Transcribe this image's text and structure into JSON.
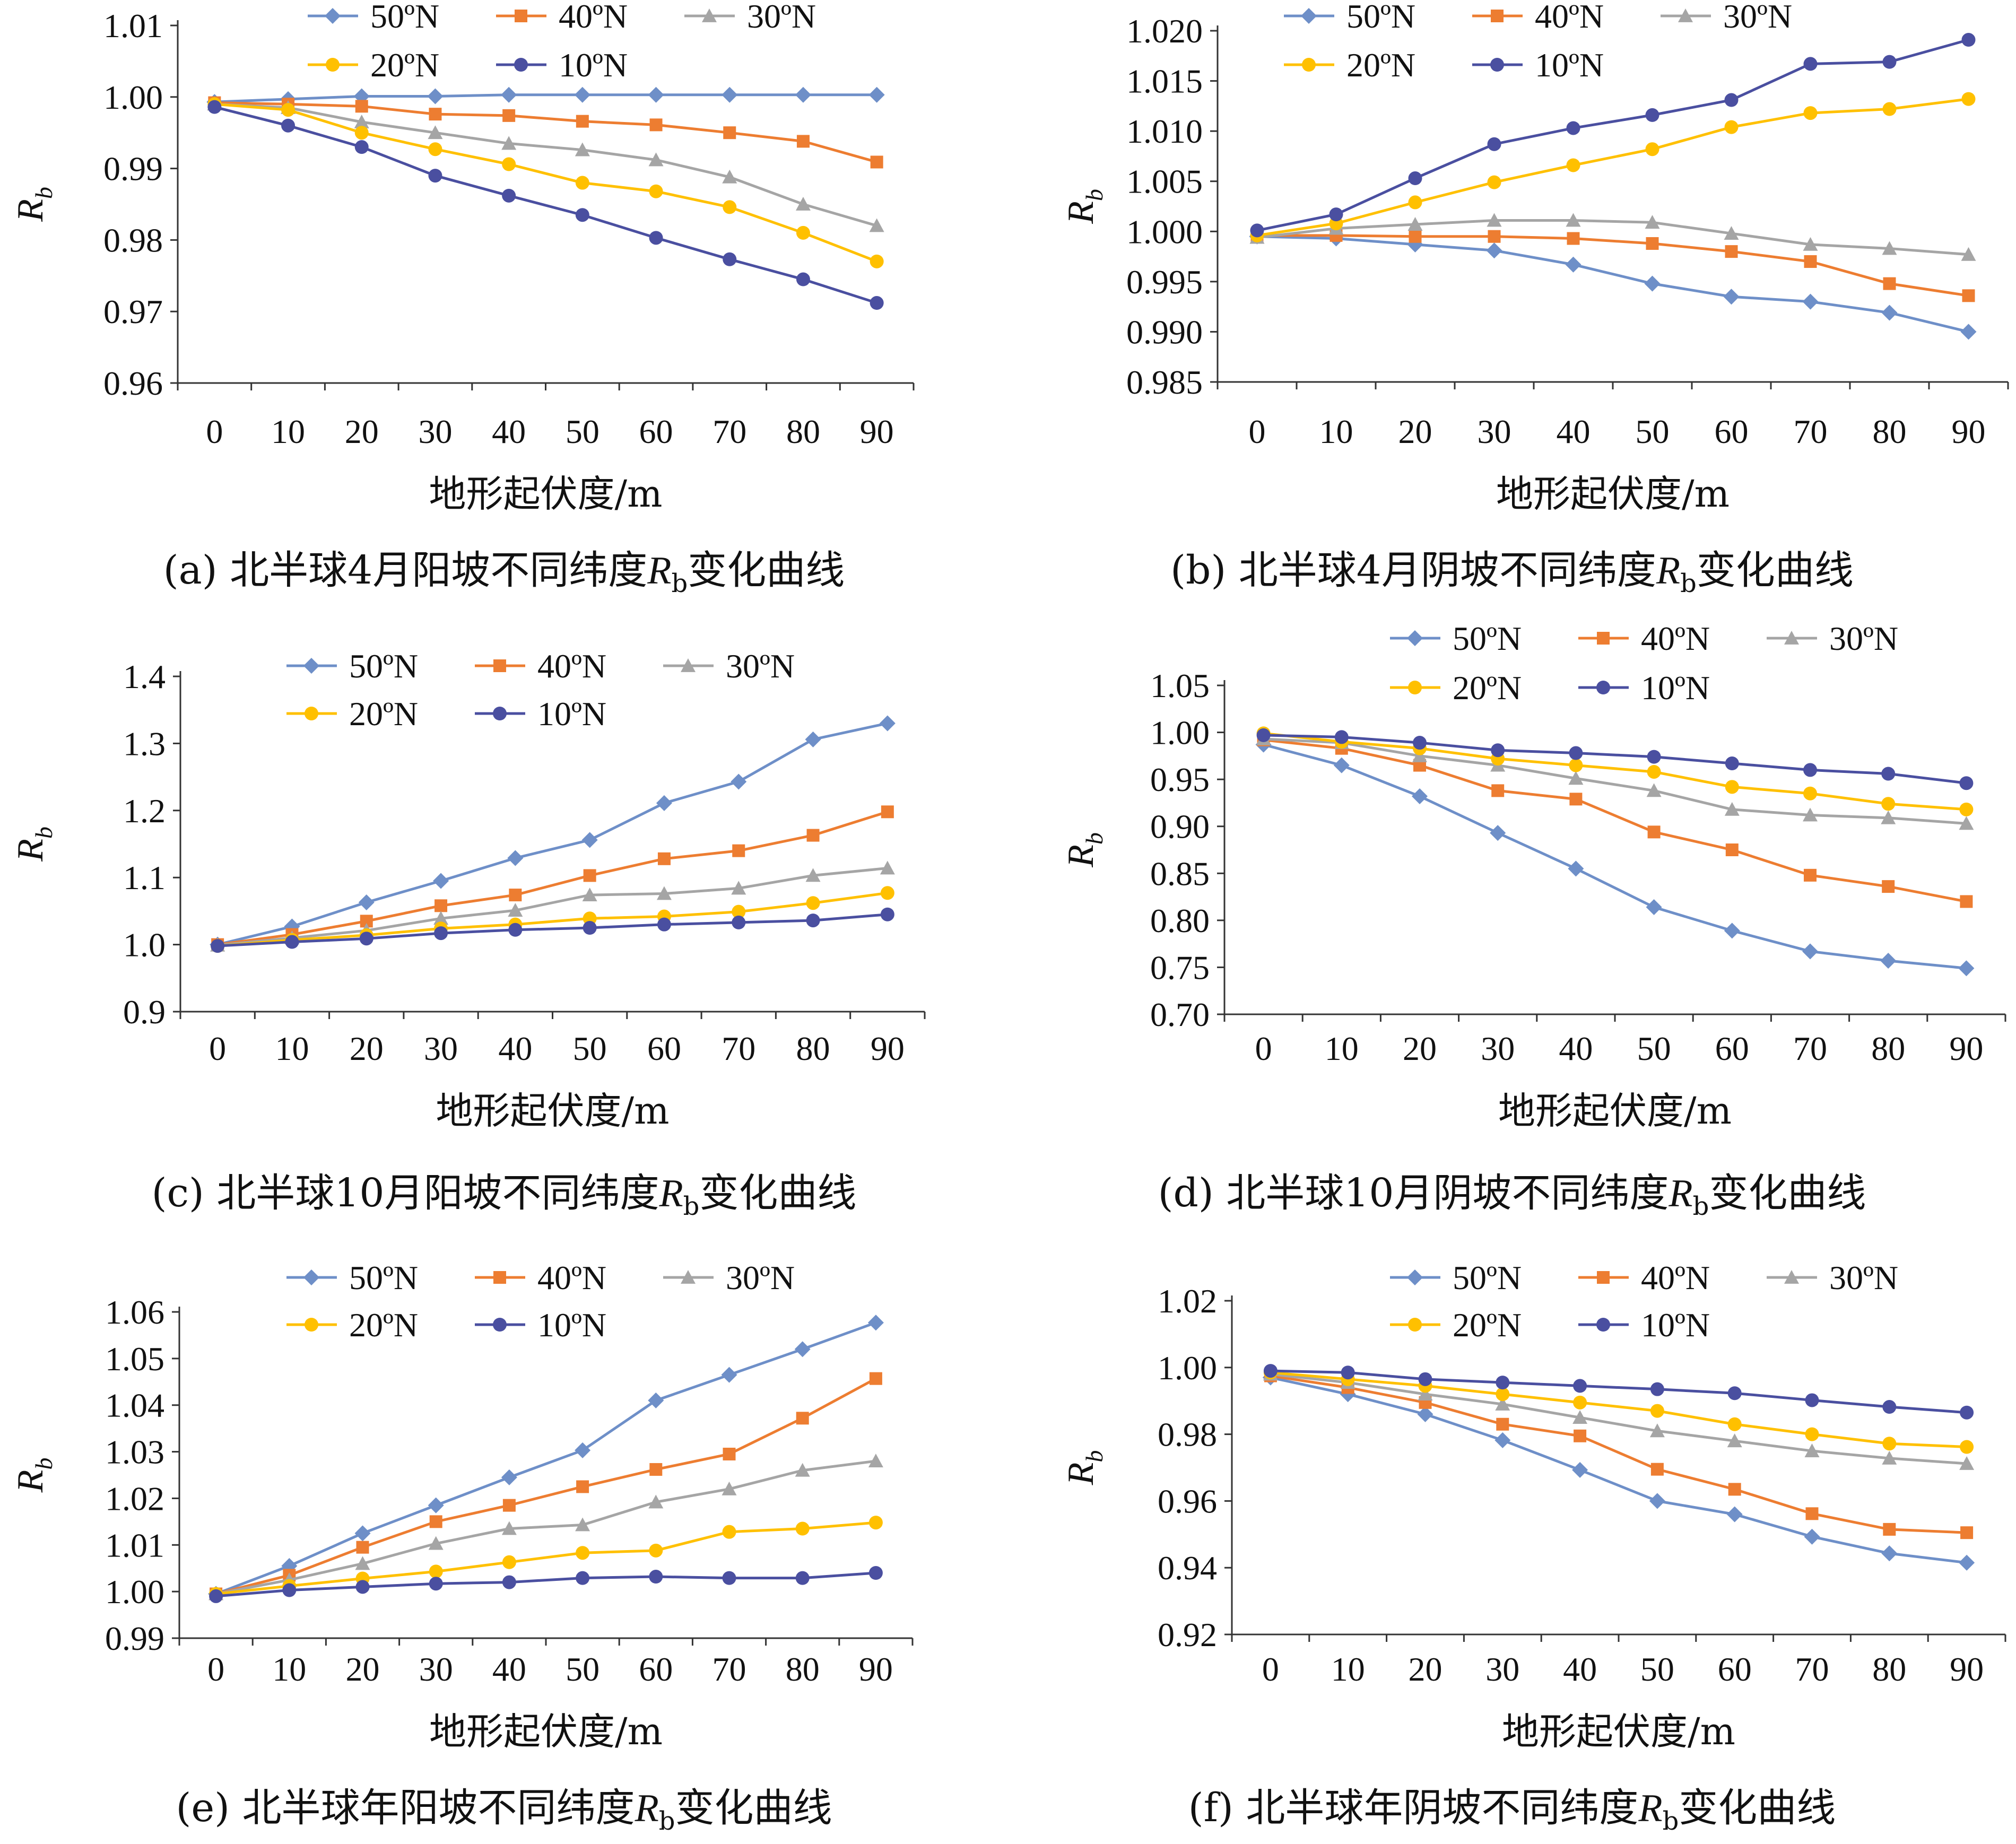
{
  "series_colors": {
    "50ºN": "#6E8FC8",
    "40ºN": "#ED7D31",
    "30ºN": "#A5A5A5",
    "20ºN": "#FFC000",
    "10ºN": "#4A4FA0"
  },
  "chart_data": [
    {
      "type": "line",
      "caption": {
        "prefix": "(a) 北半球4月阳坡不同纬度",
        "var": "R",
        "sub": "b",
        "suffix": "变化曲线"
      },
      "xlabel": "地形起伏度/m",
      "ylabel": "R",
      "ylabel_sub": "b",
      "x": [
        0,
        10,
        20,
        30,
        40,
        50,
        60,
        70,
        80,
        90
      ],
      "ylim": [
        0.96,
        1.01
      ],
      "yticks": [
        "0.96",
        "0.97",
        "0.98",
        "0.99",
        "1.00",
        "1.01"
      ],
      "legend": "top",
      "series": [
        {
          "name": "50ºN",
          "marker": "diamond",
          "values": [
            0.9993,
            0.9997,
            1.0001,
            1.0001,
            1.0003,
            1.0003,
            1.0003,
            1.0003,
            1.0003,
            1.0003
          ]
        },
        {
          "name": "40ºN",
          "marker": "square",
          "values": [
            0.9992,
            0.999,
            0.9987,
            0.9976,
            0.9974,
            0.9966,
            0.9961,
            0.995,
            0.9938,
            0.9909
          ]
        },
        {
          "name": "30ºN",
          "marker": "triangle",
          "values": [
            0.999,
            0.9985,
            0.9965,
            0.995,
            0.9935,
            0.9926,
            0.9912,
            0.9888,
            0.985,
            0.982
          ]
        },
        {
          "name": "20ºN",
          "marker": "circle",
          "values": [
            0.999,
            0.9982,
            0.995,
            0.9927,
            0.9906,
            0.988,
            0.9868,
            0.9846,
            0.981,
            0.977
          ]
        },
        {
          "name": "10ºN",
          "marker": "circle",
          "values": [
            0.9986,
            0.996,
            0.993,
            0.989,
            0.9862,
            0.9835,
            0.9803,
            0.9773,
            0.9745,
            0.9712
          ]
        }
      ]
    },
    {
      "type": "line",
      "caption": {
        "prefix": "(b) 北半球4月阴坡不同纬度",
        "var": "R",
        "sub": "b",
        "suffix": "变化曲线"
      },
      "xlabel": "地形起伏度/m",
      "ylabel": "R",
      "ylabel_sub": "b",
      "x": [
        0,
        10,
        20,
        30,
        40,
        50,
        60,
        70,
        80,
        90
      ],
      "ylim": [
        0.985,
        1.02
      ],
      "yticks": [
        "0.985",
        "0.990",
        "0.995",
        "1.000",
        "1.005",
        "1.010",
        "1.015",
        "1.020"
      ],
      "legend": "top",
      "series": [
        {
          "name": "50ºN",
          "marker": "diamond",
          "values": [
            0.9995,
            0.9993,
            0.9987,
            0.9981,
            0.9967,
            0.9948,
            0.9935,
            0.993,
            0.9919,
            0.99
          ]
        },
        {
          "name": "40ºN",
          "marker": "square",
          "values": [
            0.9996,
            0.9996,
            0.9995,
            0.9995,
            0.9993,
            0.9988,
            0.998,
            0.997,
            0.9948,
            0.9936
          ]
        },
        {
          "name": "30ºN",
          "marker": "triangle",
          "values": [
            0.9994,
            1.0003,
            1.0007,
            1.0011,
            1.0011,
            1.0009,
            0.9998,
            0.9987,
            0.9983,
            0.9977
          ]
        },
        {
          "name": "20ºN",
          "marker": "circle",
          "values": [
            0.9996,
            1.0008,
            1.0029,
            1.0049,
            1.0066,
            1.0082,
            1.0104,
            1.0118,
            1.0122,
            1.0132
          ]
        },
        {
          "name": "10ºN",
          "marker": "circle",
          "values": [
            1.0001,
            1.0017,
            1.0053,
            1.0087,
            1.0103,
            1.0116,
            1.0131,
            1.0167,
            1.0169,
            1.0191
          ]
        }
      ]
    },
    {
      "type": "line",
      "caption": {
        "prefix": "(c) 北半球10月阳坡不同纬度",
        "var": "R",
        "sub": "b",
        "suffix": "变化曲线"
      },
      "xlabel": "地形起伏度/m",
      "ylabel": "R",
      "ylabel_sub": "b",
      "x": [
        0,
        10,
        20,
        30,
        40,
        50,
        60,
        70,
        80,
        90
      ],
      "ylim": [
        0.9,
        1.4
      ],
      "yticks": [
        "0.9",
        "1.0",
        "1.1",
        "1.2",
        "1.3",
        "1.4"
      ],
      "legend": "top",
      "series": [
        {
          "name": "50ºN",
          "marker": "diamond",
          "values": [
            1.0,
            1.027,
            1.063,
            1.095,
            1.129,
            1.156,
            1.211,
            1.243,
            1.306,
            1.33
          ]
        },
        {
          "name": "40ºN",
          "marker": "square",
          "values": [
            1.0,
            1.015,
            1.035,
            1.058,
            1.074,
            1.103,
            1.128,
            1.14,
            1.163,
            1.198
          ]
        },
        {
          "name": "30ºN",
          "marker": "triangle",
          "values": [
            0.999,
            1.01,
            1.021,
            1.039,
            1.051,
            1.074,
            1.076,
            1.084,
            1.103,
            1.114
          ]
        },
        {
          "name": "20ºN",
          "marker": "circle",
          "values": [
            0.998,
            1.007,
            1.014,
            1.024,
            1.03,
            1.039,
            1.042,
            1.049,
            1.062,
            1.077
          ]
        },
        {
          "name": "10ºN",
          "marker": "circle",
          "values": [
            0.998,
            1.004,
            1.009,
            1.017,
            1.022,
            1.025,
            1.03,
            1.033,
            1.036,
            1.045
          ]
        }
      ]
    },
    {
      "type": "line",
      "caption": {
        "prefix": "(d) 北半球10月阴坡不同纬度",
        "var": "R",
        "sub": "b",
        "suffix": "变化曲线"
      },
      "xlabel": "地形起伏度/m",
      "ylabel": "R",
      "ylabel_sub": "b",
      "x": [
        0,
        10,
        20,
        30,
        40,
        50,
        60,
        70,
        80,
        90
      ],
      "ylim": [
        0.7,
        1.05
      ],
      "yticks": [
        "0.70",
        "0.75",
        "0.80",
        "0.85",
        "0.90",
        "0.95",
        "1.00",
        "1.05"
      ],
      "legend": "top",
      "series": [
        {
          "name": "50ºN",
          "marker": "diamond",
          "values": [
            0.987,
            0.965,
            0.932,
            0.893,
            0.855,
            0.814,
            0.789,
            0.767,
            0.757,
            0.749
          ]
        },
        {
          "name": "40ºN",
          "marker": "square",
          "values": [
            0.992,
            0.983,
            0.965,
            0.938,
            0.929,
            0.894,
            0.875,
            0.848,
            0.836,
            0.82
          ]
        },
        {
          "name": "30ºN",
          "marker": "triangle",
          "values": [
            0.993,
            0.989,
            0.975,
            0.965,
            0.951,
            0.938,
            0.918,
            0.912,
            0.909,
            0.903
          ]
        },
        {
          "name": "20ºN",
          "marker": "circle",
          "values": [
            0.999,
            0.99,
            0.983,
            0.972,
            0.965,
            0.958,
            0.942,
            0.935,
            0.924,
            0.918
          ]
        },
        {
          "name": "10ºN",
          "marker": "circle",
          "values": [
            0.997,
            0.995,
            0.989,
            0.981,
            0.978,
            0.974,
            0.967,
            0.96,
            0.956,
            0.946
          ]
        }
      ]
    },
    {
      "type": "line",
      "caption": {
        "prefix": "(e) 北半球年阳坡不同纬度",
        "var": "R",
        "sub": "b",
        "suffix": "变化曲线"
      },
      "xlabel": "地形起伏度/m",
      "ylabel": "R",
      "ylabel_sub": "b",
      "x": [
        0,
        10,
        20,
        30,
        40,
        50,
        60,
        70,
        80,
        90
      ],
      "ylim": [
        0.99,
        1.06
      ],
      "yticks": [
        "0.99",
        "1.00",
        "1.01",
        "1.02",
        "1.03",
        "1.04",
        "1.05",
        "1.06"
      ],
      "legend": "top",
      "series": [
        {
          "name": "50ºN",
          "marker": "diamond",
          "values": [
            0.9995,
            1.0055,
            1.0125,
            1.0185,
            1.0245,
            1.0303,
            1.041,
            1.0465,
            1.052,
            1.0577
          ]
        },
        {
          "name": "40ºN",
          "marker": "square",
          "values": [
            0.9995,
            1.0035,
            1.0095,
            1.015,
            1.0185,
            1.0225,
            1.0262,
            1.0295,
            1.0372,
            1.0457
          ]
        },
        {
          "name": "30ºN",
          "marker": "triangle",
          "values": [
            0.9995,
            1.0025,
            1.006,
            1.0103,
            1.0135,
            1.0143,
            1.0192,
            1.022,
            1.026,
            1.028
          ]
        },
        {
          "name": "20ºN",
          "marker": "circle",
          "values": [
            0.9995,
            1.0012,
            1.0028,
            1.0043,
            1.0063,
            1.0083,
            1.0088,
            1.0128,
            1.0135,
            1.0148
          ]
        },
        {
          "name": "10ºN",
          "marker": "circle",
          "values": [
            0.999,
            1.0003,
            1.001,
            1.0017,
            1.002,
            1.0029,
            1.0032,
            1.0029,
            1.0029,
            1.004
          ]
        }
      ]
    },
    {
      "type": "line",
      "caption": {
        "prefix": "(f) 北半球年阴坡不同纬度",
        "var": "R",
        "sub": "b",
        "suffix": "变化曲线"
      },
      "xlabel": "地形起伏度/m",
      "ylabel": "R",
      "ylabel_sub": "b",
      "x": [
        0,
        10,
        20,
        30,
        40,
        50,
        60,
        70,
        80,
        90
      ],
      "ylim": [
        0.92,
        1.02
      ],
      "yticks": [
        "0.92",
        "0.94",
        "0.96",
        "0.98",
        "1.00",
        "1.02"
      ],
      "legend": "top",
      "series": [
        {
          "name": "50ºN",
          "marker": "diamond",
          "values": [
            0.997,
            0.992,
            0.986,
            0.9782,
            0.9693,
            0.96,
            0.956,
            0.9493,
            0.9443,
            0.9415
          ]
        },
        {
          "name": "40ºN",
          "marker": "square",
          "values": [
            0.9975,
            0.994,
            0.9895,
            0.983,
            0.9795,
            0.9695,
            0.9635,
            0.9562,
            0.9515,
            0.9505
          ]
        },
        {
          "name": "30ºN",
          "marker": "triangle",
          "values": [
            0.998,
            0.9955,
            0.992,
            0.989,
            0.985,
            0.981,
            0.978,
            0.975,
            0.9728,
            0.9712
          ]
        },
        {
          "name": "20ºN",
          "marker": "circle",
          "values": [
            0.9985,
            0.9965,
            0.9945,
            0.992,
            0.9895,
            0.987,
            0.983,
            0.98,
            0.9772,
            0.9762
          ]
        },
        {
          "name": "10ºN",
          "marker": "circle",
          "values": [
            0.999,
            0.9985,
            0.9965,
            0.9955,
            0.9945,
            0.9935,
            0.9923,
            0.9902,
            0.9882,
            0.9865
          ]
        }
      ]
    }
  ]
}
